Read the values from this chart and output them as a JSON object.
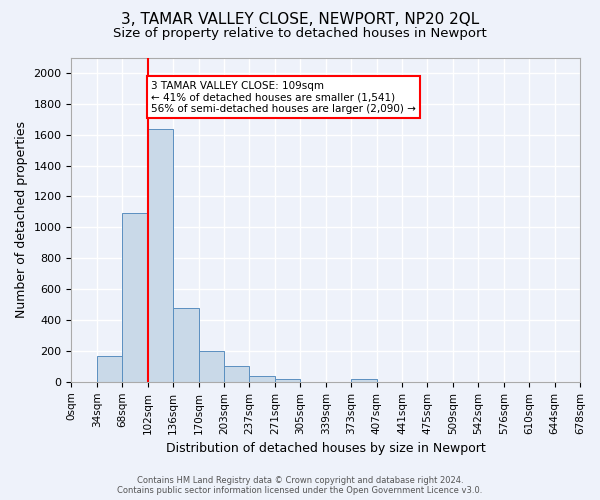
{
  "title": "3, TAMAR VALLEY CLOSE, NEWPORT, NP20 2QL",
  "subtitle": "Size of property relative to detached houses in Newport",
  "xlabel": "Distribution of detached houses by size in Newport",
  "ylabel": "Number of detached properties",
  "footer_line1": "Contains HM Land Registry data © Crown copyright and database right 2024.",
  "footer_line2": "Contains public sector information licensed under the Open Government Licence v3.0.",
  "bin_labels": [
    "0sqm",
    "34sqm",
    "68sqm",
    "102sqm",
    "136sqm",
    "170sqm",
    "203sqm",
    "237sqm",
    "271sqm",
    "305sqm",
    "339sqm",
    "373sqm",
    "407sqm",
    "441sqm",
    "475sqm",
    "509sqm",
    "542sqm",
    "576sqm",
    "610sqm",
    "644sqm",
    "678sqm"
  ],
  "bar_values": [
    0,
    167,
    1092,
    1634,
    476,
    200,
    100,
    40,
    18,
    0,
    0,
    18,
    0,
    0,
    0,
    0,
    0,
    0,
    0,
    0
  ],
  "bar_color": "#c9d9e8",
  "bar_edge_color": "#5a8fc0",
  "ylim": [
    0,
    2100
  ],
  "yticks": [
    0,
    200,
    400,
    600,
    800,
    1000,
    1200,
    1400,
    1600,
    1800,
    2000
  ],
  "vline_x": 3,
  "vline_color": "red",
  "annotation_text": "3 TAMAR VALLEY CLOSE: 109sqm\n← 41% of detached houses are smaller (1,541)\n56% of semi-detached houses are larger (2,090) →",
  "annotation_box_color": "white",
  "annotation_box_edge_color": "red",
  "bg_color": "#eef2fa",
  "grid_color": "white",
  "title_fontsize": 11,
  "subtitle_fontsize": 9.5,
  "axis_label_fontsize": 9,
  "tick_fontsize": 7.5,
  "annotation_fontsize": 7.5,
  "footer_fontsize": 6
}
